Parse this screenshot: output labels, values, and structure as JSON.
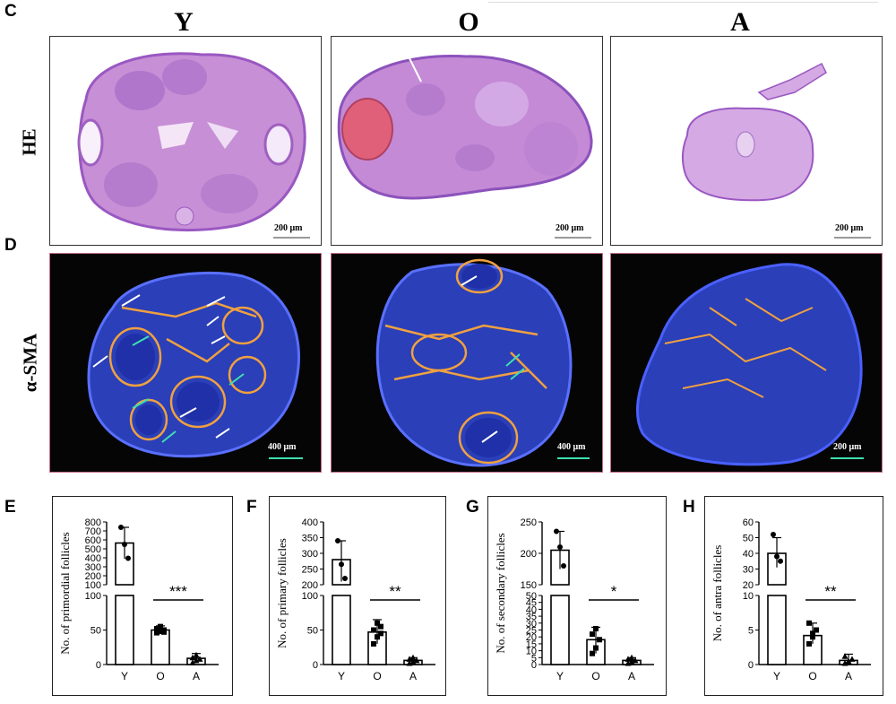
{
  "figure": {
    "panel_letters": {
      "c": "C",
      "d": "D",
      "e": "E",
      "f": "F",
      "g": "G",
      "h": "H"
    },
    "column_titles": [
      "Y",
      "O",
      "A"
    ],
    "row_labels": {
      "he": "HE",
      "ihc": "α-SMA"
    },
    "he_scalebars": [
      "200 μm",
      "200 μm",
      "200 μm"
    ],
    "if_scalebars": [
      "400 μm",
      "400 μm",
      "200 μm"
    ],
    "colors": {
      "he_tissue": "#c78fd6",
      "he_dark": "#a066c4",
      "he_blood": "#e0607a",
      "if_blue": "#2a3fb8",
      "if_orange": "#f0a040",
      "arrow_white": "#ffffff",
      "arrow_green": "#3fe0b0",
      "scalebar_green": "#3fe0b0",
      "panel_border_if": "#c66a8a"
    }
  },
  "chart_data": [
    {
      "type": "bar",
      "panel": "E",
      "ylabel": "No. of primordial follicles",
      "categories": [
        "Y",
        "O",
        "A"
      ],
      "values": [
        565,
        50,
        9
      ],
      "errors": [
        [
          390,
          740
        ],
        [
          45,
          56
        ],
        [
          2,
          16
        ]
      ],
      "points": [
        [
          740,
          550,
          395
        ],
        [
          46,
          48,
          50,
          52,
          55,
          47
        ],
        [
          3,
          6,
          8,
          10,
          14
        ]
      ],
      "broken_axis": true,
      "lower_ticks": [
        0,
        50,
        100
      ],
      "upper_ticks": [
        100,
        200,
        300,
        400,
        500,
        600,
        700,
        800
      ],
      "ylim_lower": [
        0,
        100
      ],
      "ylim_upper": [
        100,
        800
      ],
      "significance": "***",
      "sig_between": [
        "O",
        "A"
      ]
    },
    {
      "type": "bar",
      "panel": "F",
      "ylabel": "No. of primary follicles",
      "categories": [
        "Y",
        "O",
        "A"
      ],
      "values": [
        280,
        47,
        6
      ],
      "errors": [
        [
          210,
          340
        ],
        [
          30,
          65
        ],
        [
          1,
          10
        ]
      ],
      "points": [
        [
          340,
          265,
          220
        ],
        [
          30,
          40,
          45,
          50,
          60,
          55
        ],
        [
          2,
          4,
          6,
          8,
          10
        ]
      ],
      "broken_axis": true,
      "lower_ticks": [
        0,
        50,
        100
      ],
      "upper_ticks": [
        200,
        250,
        300,
        350,
        400
      ],
      "ylim_lower": [
        0,
        100
      ],
      "ylim_upper": [
        200,
        400
      ],
      "significance": "**",
      "sig_between": [
        "O",
        "A"
      ]
    },
    {
      "type": "bar",
      "panel": "G",
      "ylabel": "No. of secondary follicles",
      "categories": [
        "Y",
        "O",
        "A"
      ],
      "values": [
        205,
        18,
        3
      ],
      "errors": [
        [
          175,
          235
        ],
        [
          8,
          27
        ],
        [
          1,
          5
        ]
      ],
      "points": [
        [
          235,
          210,
          180
        ],
        [
          8,
          12,
          18,
          22,
          26
        ],
        [
          1,
          2,
          3,
          4,
          5
        ]
      ],
      "broken_axis": true,
      "lower_ticks": [
        0,
        5,
        10,
        15,
        20,
        25,
        30,
        35,
        40,
        45,
        50
      ],
      "upper_ticks": [
        150,
        200,
        250
      ],
      "ylim_lower": [
        0,
        50
      ],
      "ylim_upper": [
        150,
        250
      ],
      "significance": "*",
      "sig_between": [
        "O",
        "A"
      ]
    },
    {
      "type": "bar",
      "panel": "H",
      "ylabel": "No. of antra follicles",
      "categories": [
        "Y",
        "O",
        "A"
      ],
      "values": [
        40,
        4.2,
        0.6
      ],
      "errors": [
        [
          31,
          50
        ],
        [
          3,
          6
        ],
        [
          0,
          1.5
        ]
      ],
      "points": [
        [
          52,
          38,
          35
        ],
        [
          3,
          4,
          5,
          6,
          4.5
        ],
        [
          0.2,
          0.5,
          0.8,
          1.2,
          0.4
        ]
      ],
      "broken_axis": true,
      "lower_ticks": [
        0,
        5,
        10
      ],
      "upper_ticks": [
        20,
        30,
        40,
        50,
        60
      ],
      "ylim_lower": [
        0,
        10
      ],
      "ylim_upper": [
        20,
        60
      ],
      "significance": "**",
      "sig_between": [
        "O",
        "A"
      ]
    }
  ]
}
